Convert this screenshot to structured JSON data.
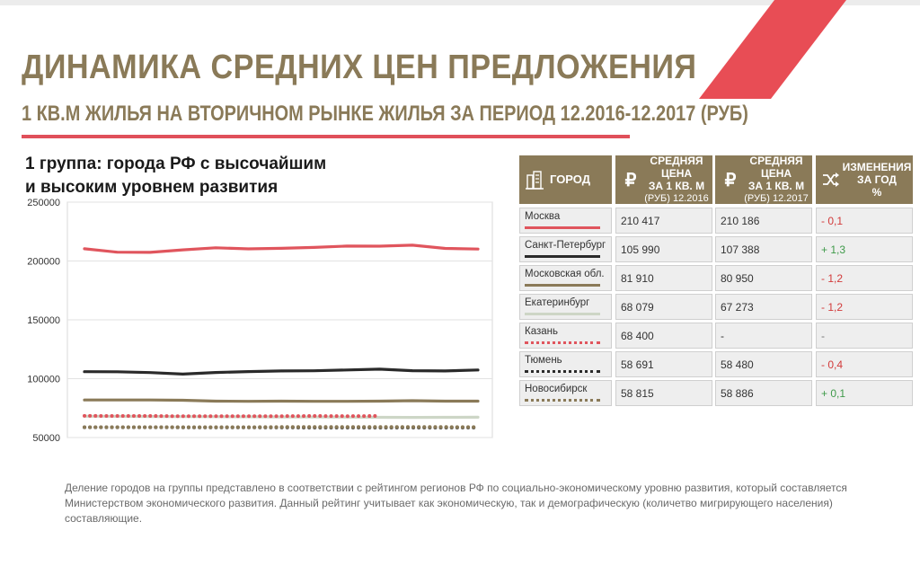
{
  "header": {
    "title": "ДИНАМИКА СРЕДНИХ ЦЕН ПРЕДЛОЖЕНИЯ",
    "subtitle": "1 КВ.М ЖИЛЬЯ НА ВТОРИЧНОМ РЫНКЕ ЖИЛЬЯ ЗА ПЕРИОД 12.2016-12.2017 (РУБ)"
  },
  "group_heading": {
    "line1": "1 группа: города РФ с высочайшим",
    "line2": "и высоким уровнем развития"
  },
  "colors": {
    "brand": "#8a7a58",
    "accent": "#e0505a",
    "negative": "#d23a3a",
    "positive": "#3f9a4a"
  },
  "table": {
    "icons": {
      "city": "building-icon",
      "price": "ruble-icon",
      "change": "shuffle-icon"
    },
    "headers": {
      "city": "ГОРОД",
      "price2016_l1": "СРЕДНЯЯ ЦЕНА",
      "price2016_l2": "ЗА 1 КВ. М",
      "price2016_l3": "(РУБ) 12.2016",
      "price2017_l1": "СРЕДНЯЯ ЦЕНА",
      "price2017_l2": "ЗА 1 КВ. М",
      "price2017_l3": "(РУБ) 12.2017",
      "change_l1": "ИЗМЕНЕНИЯ",
      "change_l2": "ЗА ГОД",
      "change_l3": "%"
    },
    "rows": [
      {
        "city": "Москва",
        "p2016": "210 417",
        "p2017": "210 186",
        "change": "- 0,1",
        "change_class": "neg",
        "color": "#e0555d",
        "style": "solid"
      },
      {
        "city": "Санкт-Петербург",
        "p2016": "105 990",
        "p2017": "107 388",
        "change": "+ 1,3",
        "change_class": "pos",
        "color": "#2a2a2a",
        "style": "solid"
      },
      {
        "city": "Московская обл.",
        "p2016": "81 910",
        "p2017": "80 950",
        "change": "- 1,2",
        "change_class": "neg",
        "color": "#8a7a58",
        "style": "solid"
      },
      {
        "city": "Екатеринбург",
        "p2016": "68 079",
        "p2017": "67 273",
        "change": "- 1,2",
        "change_class": "neg",
        "color": "#cdd6c6",
        "style": "solid"
      },
      {
        "city": "Казань",
        "p2016": "68 400",
        "p2017": "-",
        "change": "-",
        "change_class": "dash",
        "color": "#e0555d",
        "style": "dotted"
      },
      {
        "city": "Тюмень",
        "p2016": "58 691",
        "p2017": "58 480",
        "change": "- 0,4",
        "change_class": "neg",
        "color": "#2a2a2a",
        "style": "dotted"
      },
      {
        "city": "Новосибирск",
        "p2016": "58 815",
        "p2017": "58 886",
        "change": "+ 0,1",
        "change_class": "pos",
        "color": "#8a7a58",
        "style": "dotted"
      }
    ]
  },
  "chart_data": {
    "type": "line",
    "title": "1 группа: города РФ с высочайшим и высоким уровнем развития",
    "xlabel": "",
    "ylabel": "",
    "ylim": [
      50000,
      250000
    ],
    "yticks": [
      "250000",
      "200000",
      "150000",
      "100000",
      "50000"
    ],
    "ytick_values": [
      250000,
      200000,
      150000,
      100000,
      50000
    ],
    "grid": true,
    "legend": "table-right",
    "x": [
      1,
      2,
      3,
      4,
      5,
      6,
      7,
      8,
      9,
      10,
      11,
      12,
      13
    ],
    "series": [
      {
        "name": "Москва",
        "color": "#e0555d",
        "dash": "solid",
        "values": [
          210417,
          207500,
          207300,
          209500,
          211200,
          210300,
          210800,
          211500,
          212700,
          212600,
          213400,
          210700,
          210186
        ]
      },
      {
        "name": "Санкт-Петербург",
        "color": "#2a2a2a",
        "dash": "solid",
        "values": [
          105990,
          105900,
          105200,
          103900,
          105300,
          106000,
          106600,
          106700,
          107400,
          108100,
          106800,
          106600,
          107388
        ]
      },
      {
        "name": "Московская обл.",
        "color": "#8a7a58",
        "dash": "solid",
        "values": [
          81910,
          81900,
          81900,
          81700,
          80900,
          80800,
          80900,
          80800,
          80800,
          80900,
          81300,
          80900,
          80950
        ]
      },
      {
        "name": "Екатеринбург",
        "color": "#cdd6c6",
        "dash": "solid",
        "values": [
          68079,
          68000,
          67900,
          67800,
          67700,
          67600,
          67500,
          67400,
          67300,
          67200,
          67100,
          67200,
          67273
        ]
      },
      {
        "name": "Казань",
        "color": "#e0555d",
        "dash": "dotted",
        "values": [
          68400,
          68300,
          68300,
          68100,
          68100,
          68200,
          68200,
          68300,
          68200,
          68300,
          null,
          null,
          null
        ]
      },
      {
        "name": "Тюмень",
        "color": "#2a2a2a",
        "dash": "dotted",
        "values": [
          58691,
          58700,
          58700,
          58600,
          58600,
          58600,
          58600,
          58500,
          58500,
          58500,
          58500,
          58500,
          58480
        ]
      },
      {
        "name": "Новосибирск",
        "color": "#8a7a58",
        "dash": "dotted",
        "values": [
          58815,
          58800,
          58800,
          58800,
          58800,
          58800,
          58900,
          58900,
          58900,
          58900,
          58900,
          58900,
          58886
        ]
      }
    ]
  },
  "footnote": "Деление  городов  на группы представлено  в соответствии с  рейтингом регионов РФ по  социально-экономическому уровню развития, который составляется Министерством экономического развития. Данный рейтинг учитывает как экономическую, так и демографическую (количетво мигрирующего населения) составляющие."
}
